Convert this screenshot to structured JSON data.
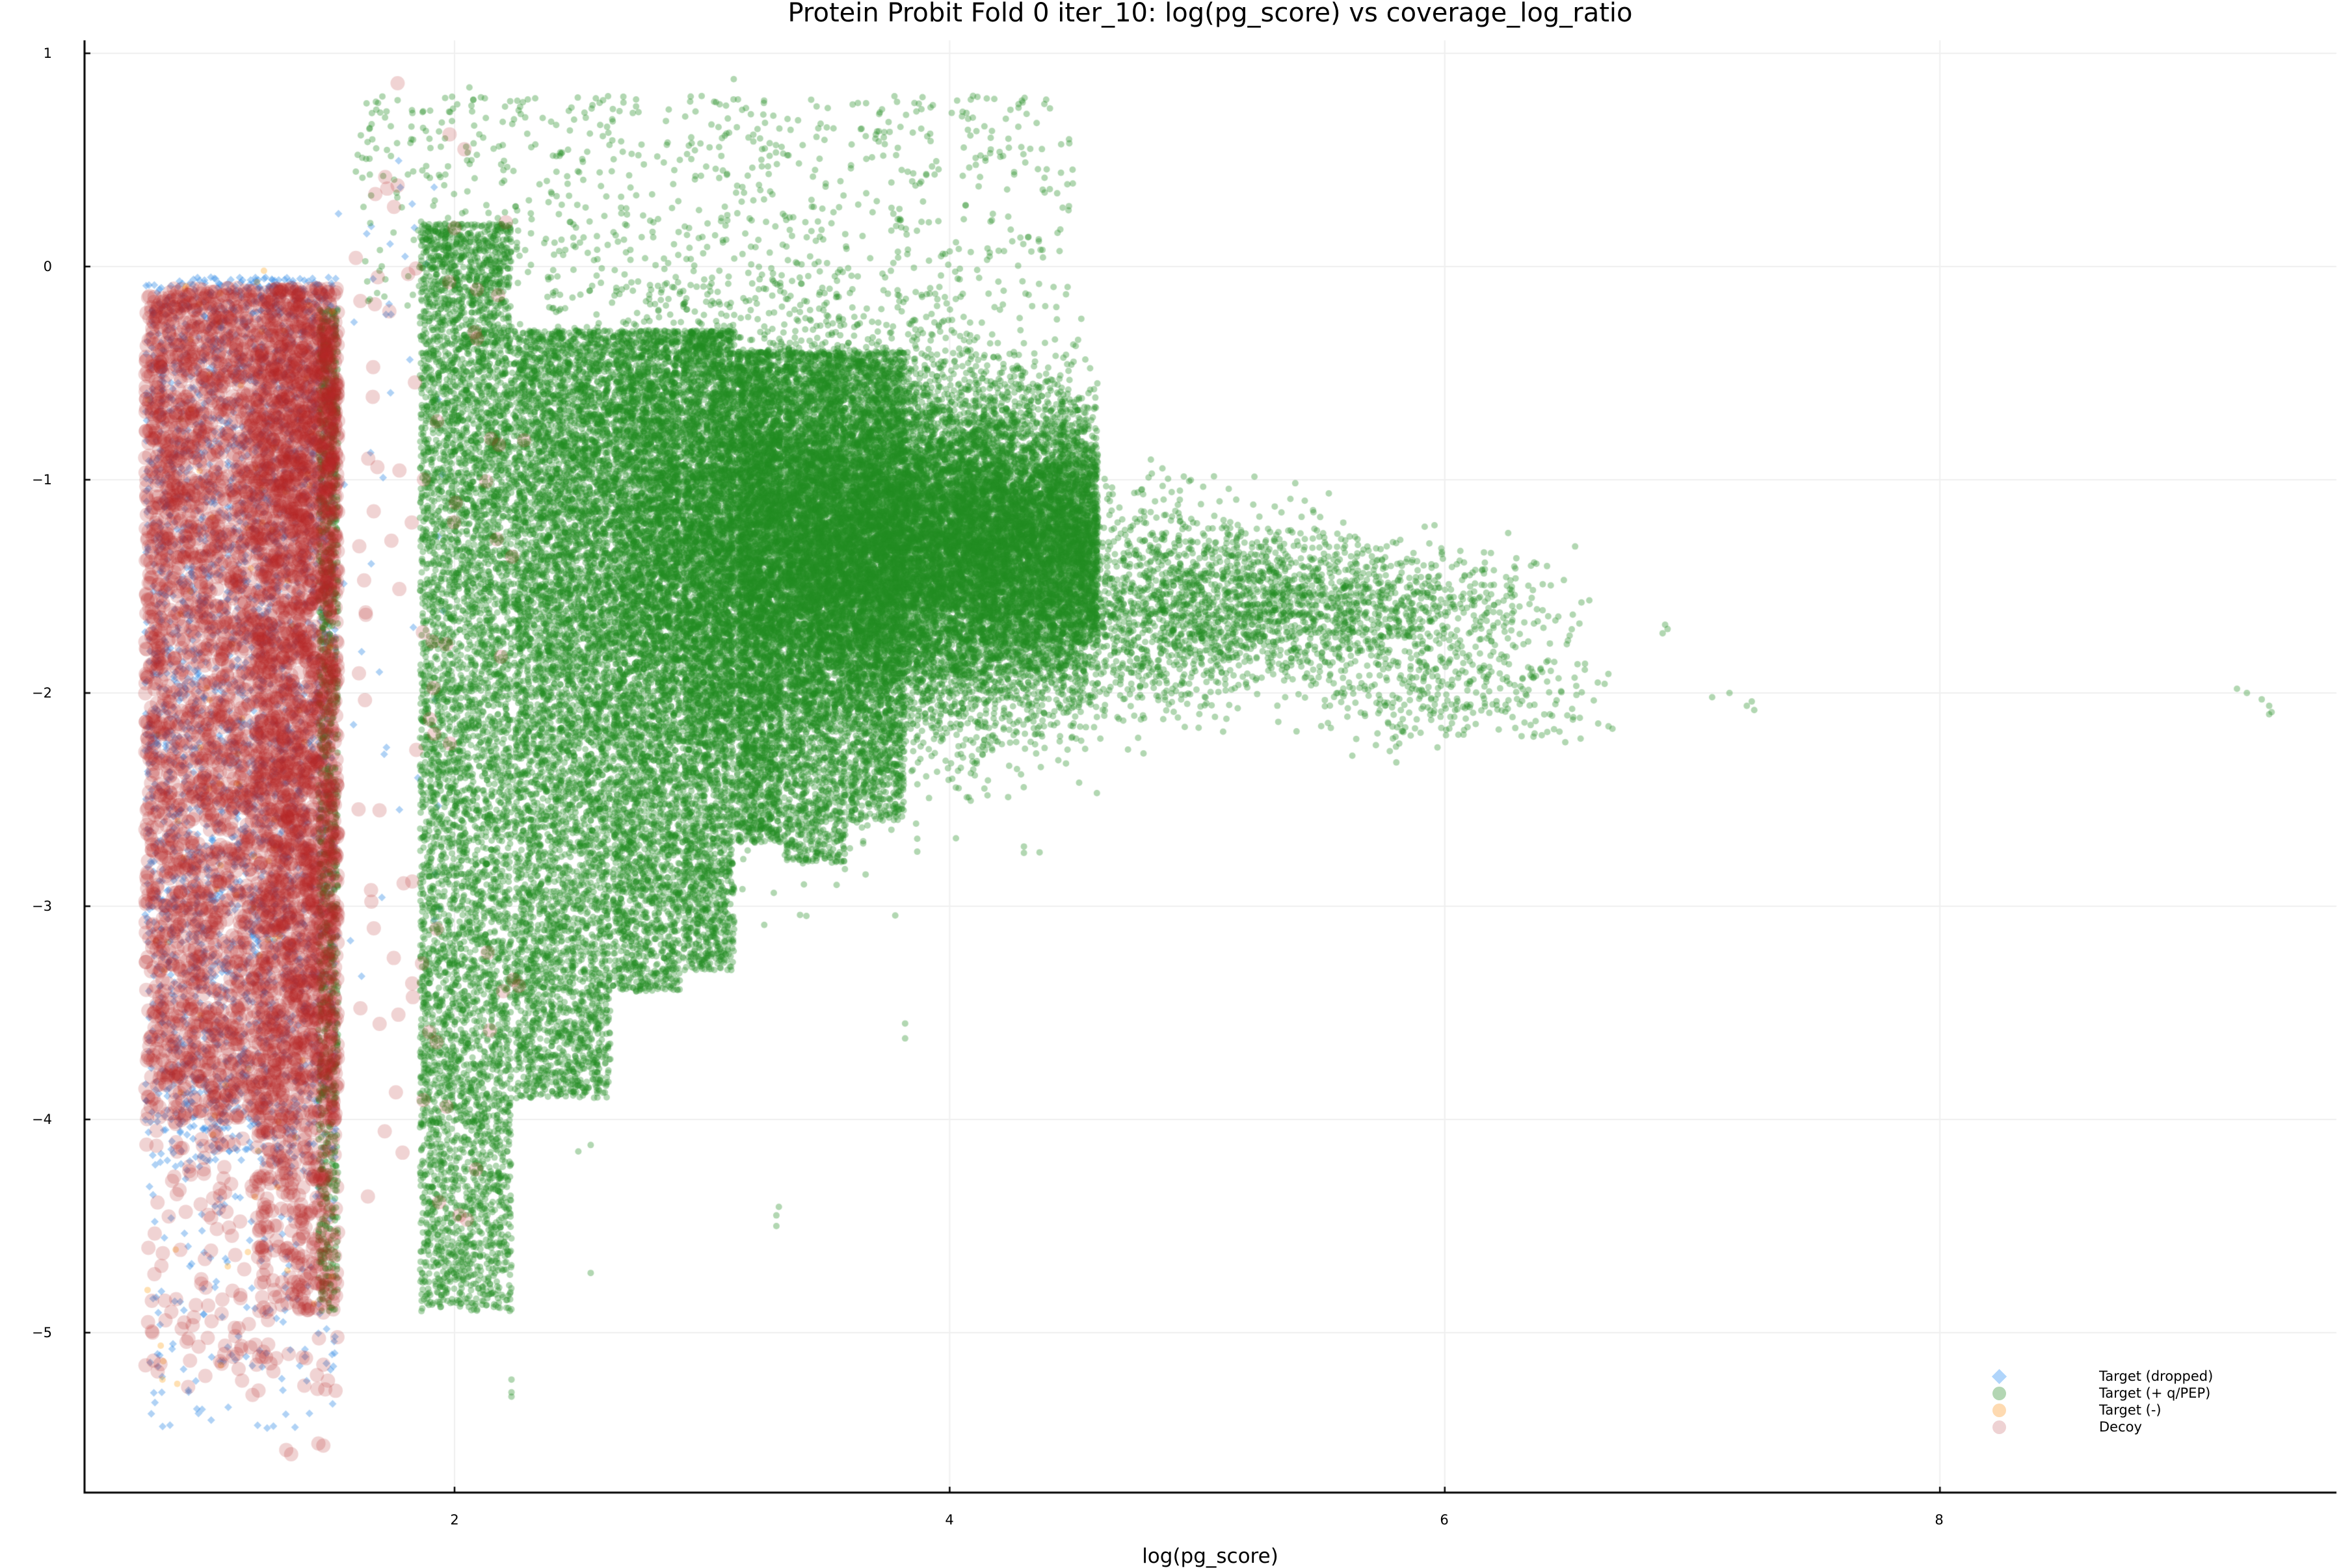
{
  "chart_data": {
    "type": "scatter",
    "title": "Protein Probit Fold 0 iter_10: log(pg_score) vs coverage_log_ratio",
    "xlabel": "log(pg_score)",
    "ylabel": "",
    "xlim": [
      0.5,
      9.6
    ],
    "ylim": [
      -5.75,
      1.07
    ],
    "grid": true,
    "legend_position": "bottom-right",
    "xticks": [
      2,
      4,
      6,
      8
    ],
    "yticks": [
      1,
      0,
      -1,
      -2,
      -3,
      -4,
      -5
    ],
    "xtick_labels": [
      "2",
      "4",
      "6",
      "8"
    ],
    "ytick_labels": [
      "1",
      "0",
      "−1",
      "−2",
      "−3",
      "−4",
      "−5"
    ],
    "series": [
      {
        "name": "Target (dropped)",
        "marker": "diamond",
        "color": "#3A8FE6",
        "alpha": 0.4,
        "size": 6,
        "description": "Dense uniform block for log(pg_score) 0.75-1.53, coverage_log_ratio -0.05 to -5.5; sparse points 1.55-2.0",
        "clusters": [
          {
            "x": [
              0.75,
              1.52
            ],
            "y": [
              -0.05,
              -4.2
            ],
            "n": 2600
          },
          {
            "x": [
              0.75,
              1.52
            ],
            "y": [
              -4.2,
              -5.5
            ],
            "n": 140
          },
          {
            "x": [
              1.52,
              2.0
            ],
            "y": [
              0.5,
              -3.5
            ],
            "n": 45
          }
        ]
      },
      {
        "name": "Target (+ q/PEP)",
        "marker": "circle",
        "color": "#228B22",
        "alpha": 0.35,
        "size": 5,
        "description": "Main mass centered near (3.9, -1.3) fanning to x~7; discrete vertical columns at x=2.23, 2.63, 2.91, 3.13, 3.32, 3.58, 3.82 extending down; outlier clusters near (6.9,-1.7), (7.2,-2.05), (9.3,-2.05)",
        "clusters": [
          {
            "x": [
              1.9,
              4.6
            ],
            "cx": 3.9,
            "cy": -1.3,
            "sx": 0.75,
            "sy": 0.55,
            "n": 30000
          },
          {
            "x": [
              4.0,
              6.6
            ],
            "cx": 5.0,
            "cy": -1.6,
            "sx": 0.6,
            "sy": 0.45,
            "n": 3500
          },
          {
            "x": [
              5.5,
              6.7
            ],
            "cx": 6.0,
            "cy": -2.0,
            "sx": 0.35,
            "sy": 0.35,
            "n": 350
          },
          {
            "x": [
              1.86,
              2.23
            ],
            "y": [
              0.2,
              -4.9
            ],
            "n": 6000
          },
          {
            "x": [
              1.45,
              1.53
            ],
            "y": [
              -0.2,
              -4.9
            ],
            "n": 1200
          },
          {
            "x": [
              2.24,
              2.63
            ],
            "y": [
              -0.3,
              -3.9
            ],
            "n": 5200
          },
          {
            "x": [
              2.64,
              2.91
            ],
            "y": [
              -0.3,
              -3.4
            ],
            "n": 3800
          },
          {
            "x": [
              2.92,
              3.13
            ],
            "y": [
              -0.3,
              -3.3
            ],
            "n": 3200
          },
          {
            "x": [
              3.14,
              3.32
            ],
            "y": [
              -0.4,
              -2.7
            ],
            "n": 2600
          },
          {
            "x": [
              3.33,
              3.58
            ],
            "y": [
              -0.4,
              -2.8
            ],
            "n": 2600
          },
          {
            "x": [
              3.59,
              3.82
            ],
            "y": [
              -0.4,
              -2.6
            ],
            "n": 2000
          },
          {
            "x": [
              1.6,
              4.5
            ],
            "y": [
              0.8,
              -0.2
            ],
            "n": 700
          }
        ],
        "outliers": [
          [
            6.89,
            -1.68
          ],
          [
            6.88,
            -1.72
          ],
          [
            6.9,
            -1.7
          ],
          [
            7.08,
            -2.02
          ],
          [
            7.15,
            -2.0
          ],
          [
            7.22,
            -2.06
          ],
          [
            7.24,
            -2.04
          ],
          [
            7.25,
            -2.08
          ],
          [
            9.2,
            -1.98
          ],
          [
            9.24,
            -2.0
          ],
          [
            9.3,
            -2.03
          ],
          [
            9.33,
            -2.06
          ],
          [
            9.34,
            -2.09
          ],
          [
            9.33,
            -2.1
          ],
          [
            3.3,
            -4.45
          ],
          [
            3.3,
            -4.5
          ],
          [
            3.31,
            -4.41
          ],
          [
            2.23,
            -5.22
          ],
          [
            2.23,
            -5.28
          ],
          [
            2.23,
            -5.3
          ],
          [
            2.55,
            -4.72
          ],
          [
            2.5,
            -4.15
          ],
          [
            2.55,
            -4.12
          ],
          [
            3.82,
            -3.55
          ],
          [
            3.82,
            -3.62
          ],
          [
            4.3,
            -2.75
          ],
          [
            4.3,
            -2.72
          ],
          [
            1.77,
            0.78
          ],
          [
            1.83,
            0.72
          ],
          [
            2.06,
            0.84
          ],
          [
            2.1,
            0.62
          ],
          [
            2.6,
            0.78
          ],
          [
            2.72,
            0.72
          ],
          [
            3.7,
            0.6
          ],
          [
            3.1,
            0.43
          ],
          [
            2.91,
            0.5
          ]
        ]
      },
      {
        "name": "Target (-)",
        "marker": "circle",
        "color": "#FF9900",
        "alpha": 0.3,
        "size": 5,
        "description": "Sparse points within left block",
        "clusters": [
          {
            "x": [
              0.75,
              1.52
            ],
            "y": [
              -0.05,
              -5.3
            ],
            "n": 90
          }
        ],
        "outliers": [
          [
            0.82,
            -5.22
          ],
          [
            0.88,
            -5.24
          ],
          [
            0.76,
            -4.8
          ],
          [
            1.23,
            -0.02
          ]
        ]
      },
      {
        "name": "Decoy",
        "marker": "circle",
        "color": "#B22222",
        "alpha": 0.2,
        "size": 11,
        "description": "Dense block for log(pg_score) 0.75-1.53 down to about -4.9, concentrated at right edge; sparse decoys 1.6-2.3",
        "clusters": [
          {
            "x": [
              0.75,
              1.53
            ],
            "y": [
              -0.1,
              -4.0
            ],
            "n": 4200
          },
          {
            "x": [
              1.2,
              1.53
            ],
            "y": [
              -0.3,
              -4.9
            ],
            "n": 1300
          },
          {
            "x": [
              0.75,
              1.53
            ],
            "y": [
              -4.0,
              -5.3
            ],
            "n": 180
          },
          {
            "x": [
              1.6,
              2.3
            ],
            "y": [
              0.4,
              -4.5
            ],
            "n": 80
          }
        ],
        "outliers": [
          [
            1.77,
            0.86
          ],
          [
            1.98,
            0.62
          ],
          [
            2.04,
            0.55
          ],
          [
            1.72,
            0.42
          ],
          [
            1.77,
            0.38
          ],
          [
            1.68,
            0.34
          ],
          [
            1.69,
            -0.05
          ],
          [
            1.32,
            -5.55
          ],
          [
            1.34,
            -5.57
          ],
          [
            1.45,
            -5.52
          ],
          [
            1.47,
            -5.53
          ],
          [
            1.07,
            -5.1
          ],
          [
            1.12,
            -5.1
          ],
          [
            1.2,
            -5.15
          ],
          [
            1.28,
            -5.12
          ],
          [
            1.33,
            -5.1
          ],
          [
            1.4,
            -5.12
          ],
          [
            1.47,
            -5.15
          ],
          [
            0.78,
            -5.0
          ],
          [
            0.83,
            -4.85
          ],
          [
            2.02,
            -4.45
          ],
          [
            2.05,
            -4.47
          ]
        ]
      }
    ]
  },
  "legend": {
    "items": [
      {
        "label": "Target (dropped)",
        "marker": "diamond",
        "color": "#b0d5fb"
      },
      {
        "label": "Target (+ q/PEP)",
        "marker": "circle",
        "color": "#b3d6b3"
      },
      {
        "label": "Target (-)",
        "marker": "circle",
        "color": "#fedab1"
      },
      {
        "label": "Decoy",
        "marker": "circle",
        "color": "#eed2d3"
      }
    ]
  },
  "axes": {
    "frame_color": "#000000",
    "grid_color": "#efefef"
  }
}
